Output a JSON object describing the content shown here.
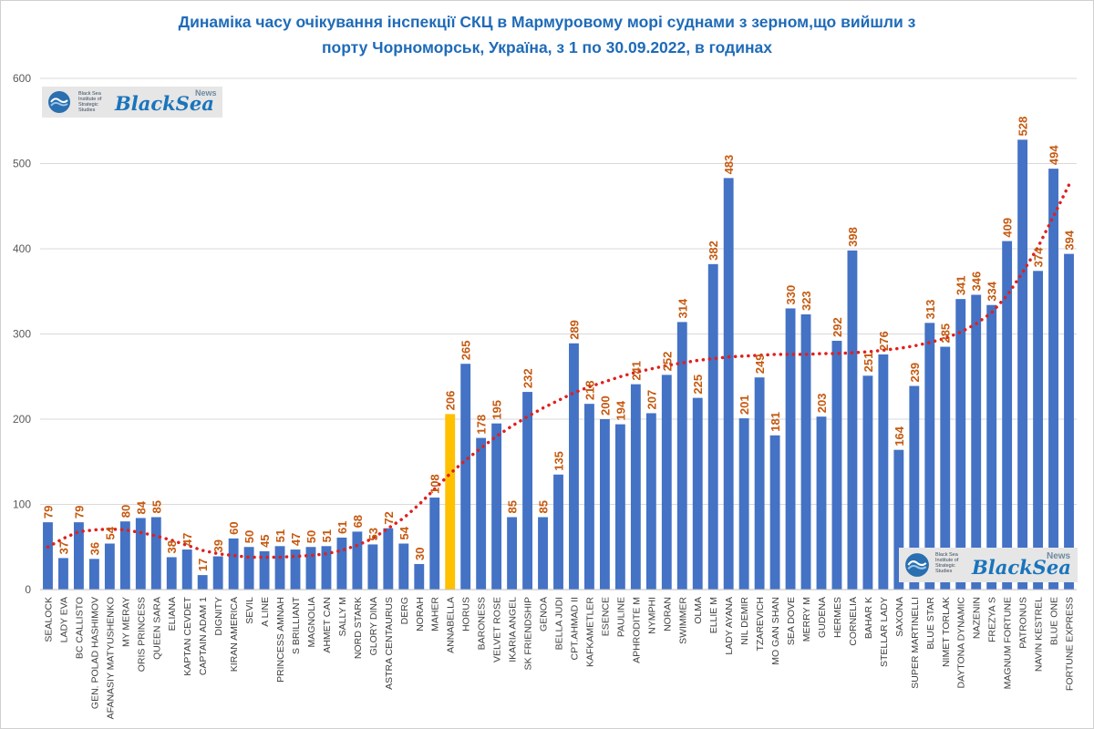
{
  "title_lines": [
    "Динаміка часу очікування інспекції СКЦ в Мармуровому морі суднами з зерном,що вийшли з",
    "порту Чорноморськ, Україна, з 1 по 30.09.2022, в годинах"
  ],
  "logo": {
    "institute_lines": [
      "Black Sea",
      "Institute of",
      "Strategic",
      "Studies"
    ],
    "wordmark": "BlackSea",
    "news": "News"
  },
  "colors": {
    "bar": "#4472c4",
    "highlight": "#ffc000",
    "label": "#c55a11",
    "trend": "#e0201e",
    "title": "#1f6bb8"
  },
  "chart_data": {
    "type": "bar",
    "title": "Динаміка часу очікування інспекції СКЦ в Мармуровому морі суднами з зерном,що вийшли з порту Чорноморськ, Україна, з 1 по 30.09.2022, в годинах",
    "ylim": [
      0,
      600
    ],
    "yticks": [
      0,
      100,
      200,
      300,
      400,
      500,
      600
    ],
    "grid": true,
    "highlight_category": "ANNABELLA",
    "categories": [
      "SEALOCK",
      "LADY EVA",
      "BC CALLISTO",
      "GEN. POLAD HASHIMOV",
      "AFANASIY MATYUSHENKO",
      "MY MERAY",
      "ORIS PRINCESS",
      "QUEEN SARA",
      "ELIANA",
      "KAPTAN CEVDET",
      "CAPTAIN ADAM 1",
      "DIGNITY",
      "KIRAN AMERICA",
      "SEVIL",
      "A LINE",
      "PRINCESS AMNAH",
      "S BRILLIANT",
      "MAGNOLIA",
      "AHMET CAN",
      "SALLY M",
      "NORD STARK",
      "GLORY DINA",
      "ASTRA CENTAURUS",
      "DERG",
      "NORAH",
      "MAHER",
      "ANNABELLA",
      "HORUS",
      "BARONESS",
      "VELVET ROSE",
      "IKARIA ANGEL",
      "SK FRIENDSHIP",
      "GENOA",
      "BELLA JUDI",
      "CPT.AHMAD II",
      "KAFKAMETLER",
      "ESENCE",
      "PAULINE",
      "APHRODITE M",
      "NYMPHI",
      "NORAN",
      "SWIMMER",
      "OLMA",
      "ELLIE M",
      "LADY AYANA",
      "NIL DEMIR",
      "TZAREVICH",
      "MO GAN SHAN",
      "SEA DOVE",
      "MERRY M",
      "GUDENA",
      "HERMES",
      "CORNELIA",
      "BAHAR K",
      "STELLAR LADY",
      "SAXONA",
      "SUPER MARTINELLI",
      "BLUE STAR",
      "NIMET TORLAK",
      "DAYTONA DYNAMIC",
      "NAZENIN",
      "FREZYA S",
      "MAGNUM FORTUNE",
      "PATRONUS",
      "NAVIN KESTREL",
      "BLUE ONE",
      "FORTUNE EXPRESS"
    ],
    "values": [
      79,
      37,
      79,
      36,
      54,
      80,
      84,
      85,
      38,
      47,
      17,
      39,
      60,
      50,
      45,
      51,
      47,
      50,
      51,
      61,
      68,
      53,
      72,
      54,
      30,
      108,
      206,
      265,
      178,
      195,
      85,
      232,
      85,
      135,
      289,
      218,
      200,
      194,
      241,
      207,
      252,
      314,
      225,
      382,
      483,
      201,
      249,
      181,
      330,
      323,
      203,
      292,
      398,
      251,
      276,
      164,
      239,
      313,
      285,
      341,
      346,
      334,
      409,
      528,
      374,
      494,
      394
    ],
    "trendline": {
      "type": "polynomial",
      "style": "dotted",
      "values": [
        50,
        60,
        68,
        70,
        71,
        70,
        67,
        63,
        58,
        52,
        46,
        42,
        40,
        38,
        38,
        38,
        39,
        40,
        42,
        46,
        52,
        60,
        72,
        84,
        100,
        118,
        136,
        152,
        166,
        180,
        192,
        203,
        213,
        222,
        231,
        238,
        244,
        250,
        255,
        259,
        263,
        266,
        269,
        271,
        273,
        274,
        275,
        276,
        276,
        276,
        277,
        277,
        278,
        279,
        281,
        283,
        286,
        290,
        295,
        302,
        312,
        325,
        345,
        372,
        402,
        438,
        475
      ]
    }
  }
}
